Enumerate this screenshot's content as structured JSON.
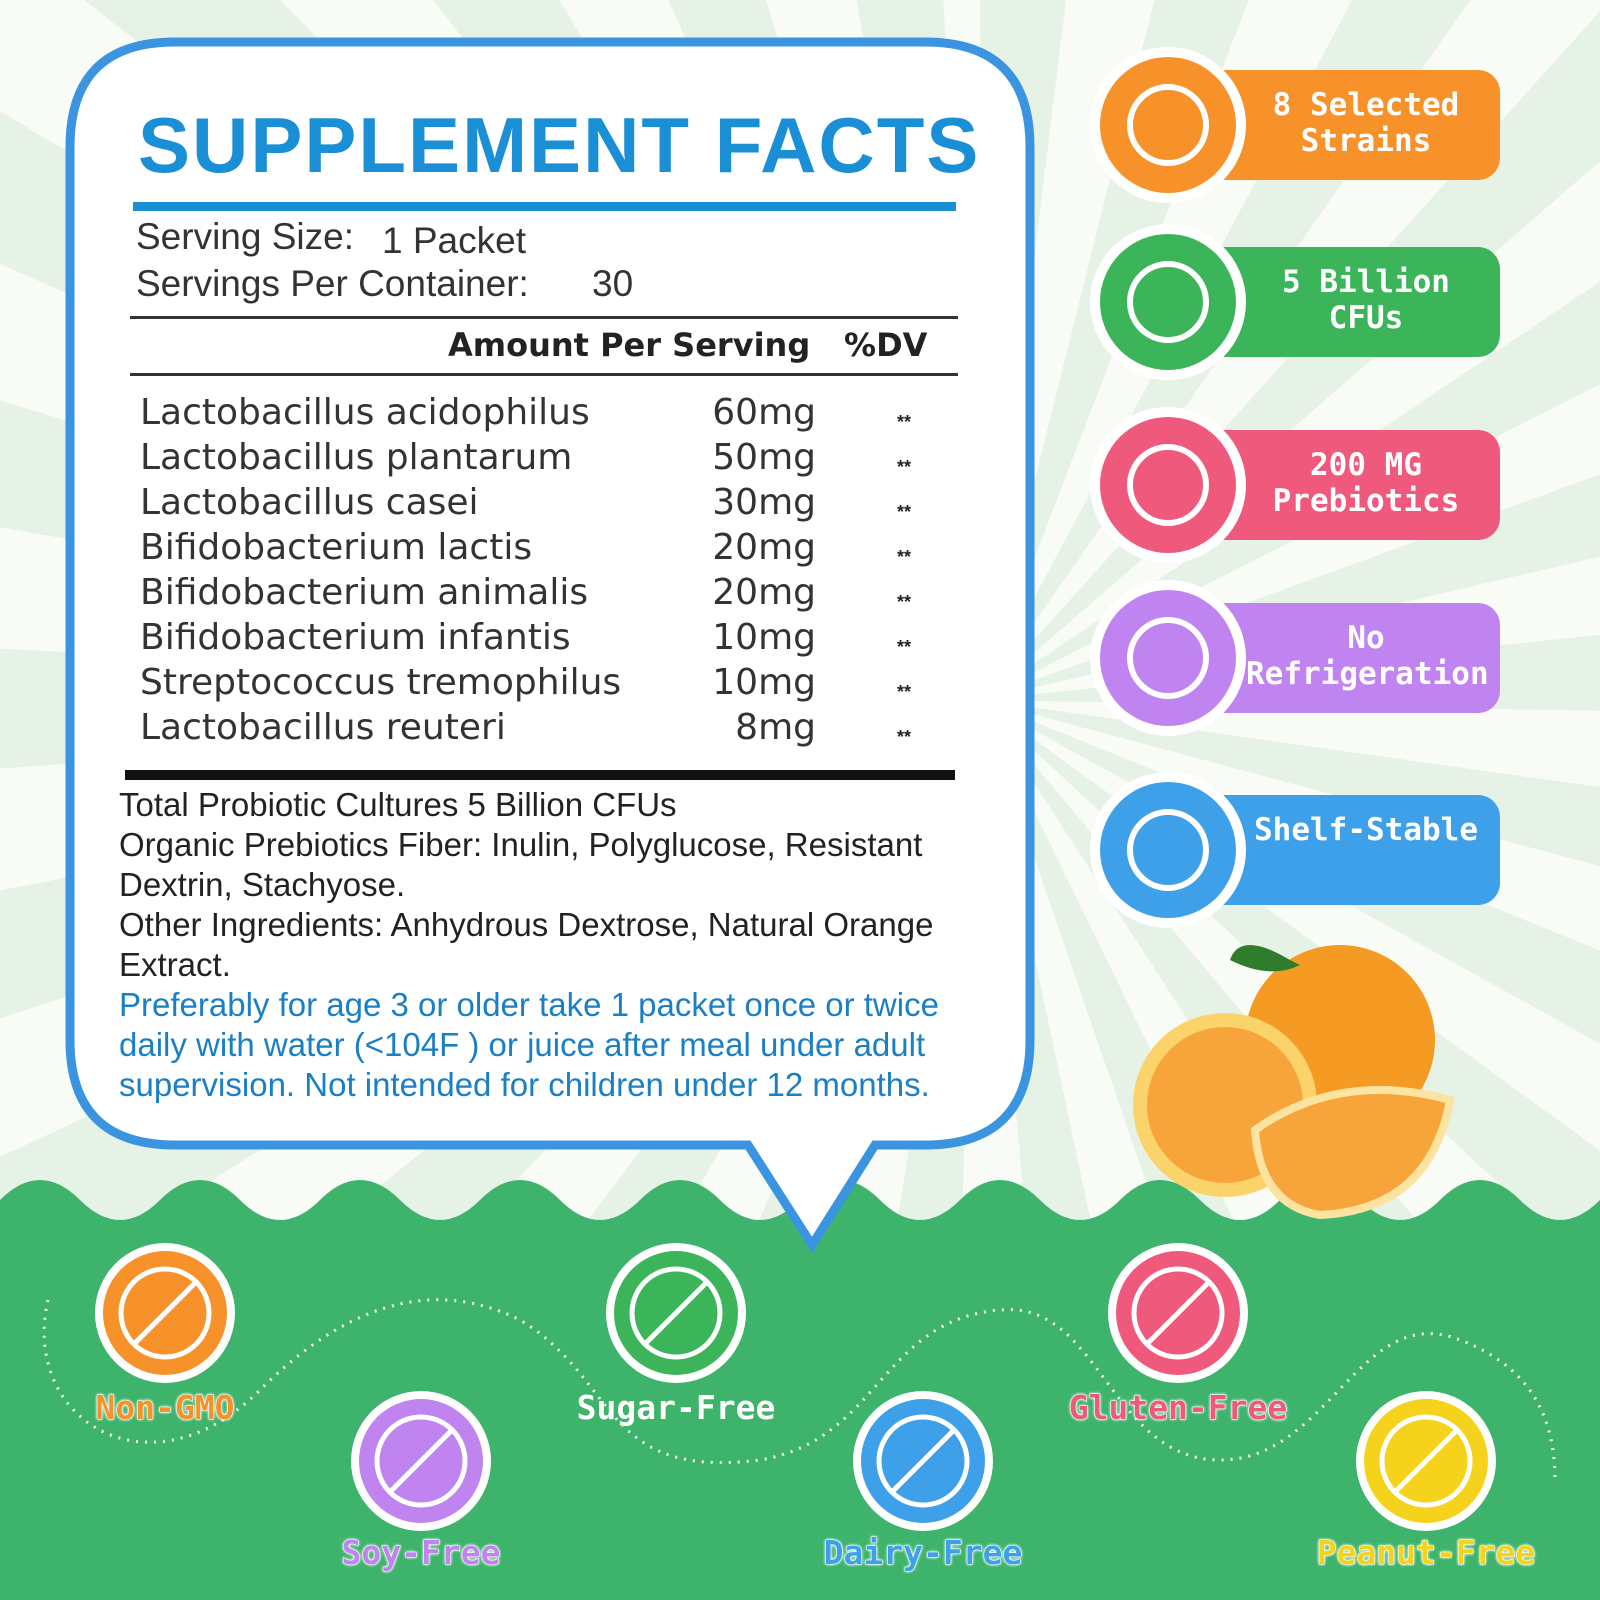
{
  "facts": {
    "title": "SUPPLEMENT  FACTS",
    "serving_size_label": "Serving Size:",
    "serving_size": "1 Packet",
    "servings_label": "Servings Per Container:",
    "servings": "30",
    "amount_header": "Amount Per Serving",
    "dv_header": "%DV",
    "rows": [
      [
        "Lactobacillus acidophilus",
        "60mg",
        "**"
      ],
      [
        "Lactobacillus plantarum",
        "50mg",
        "**"
      ],
      [
        "Lactobacillus casei",
        "30mg",
        "**"
      ],
      [
        "Bifidobacterium lactis",
        "20mg",
        "**"
      ],
      [
        "Bifidobacterium animalis",
        "20mg",
        "**"
      ],
      [
        "Bifidobacterium infantis",
        "10mg",
        "**"
      ],
      [
        "Streptococcus tremophilus",
        "10mg",
        "**"
      ],
      [
        "Lactobacillus reuteri",
        "8mg",
        "**"
      ]
    ],
    "notes": [
      "Total Probiotic Cultures 5 Billion CFUs",
      "Organic Prebiotics Fiber: Inulin, Polyglucose, Resistant Dextrin, Stachyose.",
      "Other Ingredients: Anhydrous Dextrose, Natural Orange Extract."
    ],
    "directions": "Preferably for age 3 or older take 1 packet once or twice daily with water (<104F ) or juice after meal under adult supervision. Not intended for children under 12 months."
  },
  "features": [
    "8 Selected Strains",
    "5 Billion CFUs",
    "200 MG Prebiotics",
    "No Refrigeration",
    "Shelf-Stable"
  ],
  "badges": [
    "Non-GMO",
    "Soy-Free",
    "Sugar-Free",
    "Dairy-Free",
    "Gluten-Free",
    "Peanut-Free"
  ]
}
